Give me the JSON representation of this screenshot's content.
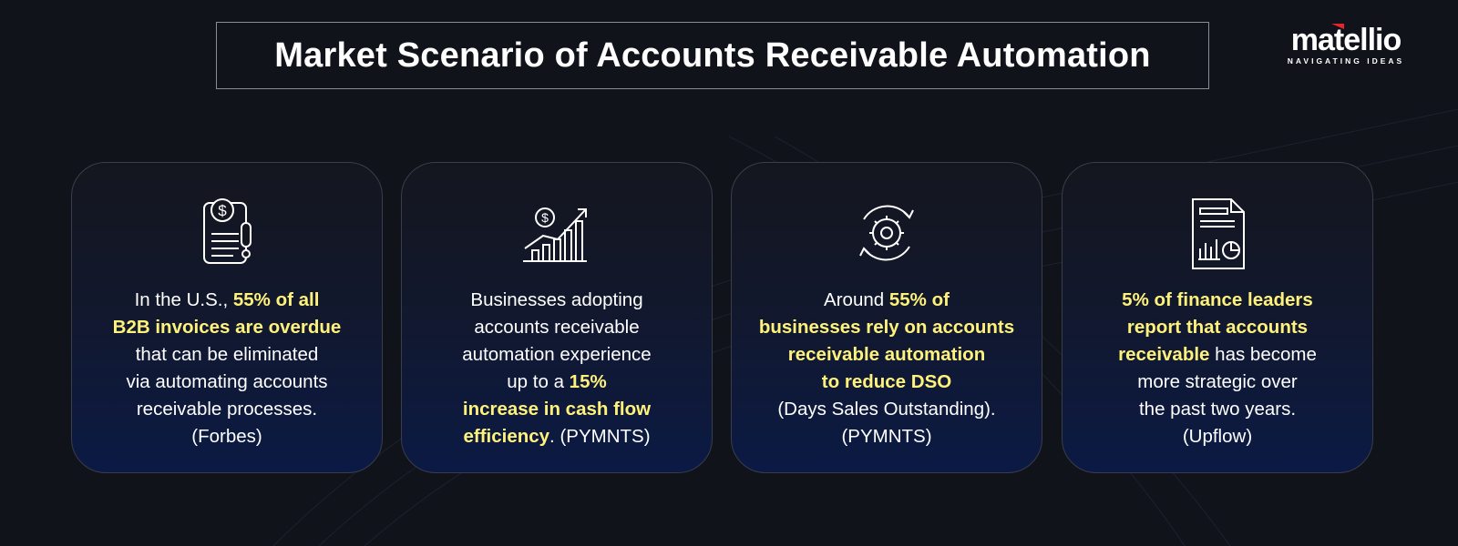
{
  "title": "Market Scenario of Accounts Receivable Automation",
  "logo": {
    "wordmark": "matellio",
    "tagline": "NAVIGATING IDEAS",
    "accent": "#e8242b"
  },
  "colors": {
    "highlight": "#fff27a",
    "background": "#11131b",
    "card_bottom": "#0b1a45"
  },
  "cards": [
    {
      "icon": "invoice-alert-icon",
      "lines": [
        [
          {
            "t": "In the U.S., ",
            "hl": false
          },
          {
            "t": "55% of all",
            "hl": true
          }
        ],
        [
          {
            "t": "B2B invoices are overdue",
            "hl": true
          }
        ],
        [
          {
            "t": "that can be eliminated",
            "hl": false
          }
        ],
        [
          {
            "t": "via automating accounts",
            "hl": false
          }
        ],
        [
          {
            "t": "receivable processes.",
            "hl": false
          }
        ],
        [
          {
            "t": "(Forbes)",
            "hl": false
          }
        ]
      ]
    },
    {
      "icon": "growth-chart-icon",
      "lines": [
        [
          {
            "t": "Businesses adopting",
            "hl": false
          }
        ],
        [
          {
            "t": "accounts receivable",
            "hl": false
          }
        ],
        [
          {
            "t": "automation experience",
            "hl": false
          }
        ],
        [
          {
            "t": "up to a ",
            "hl": false
          },
          {
            "t": "15%",
            "hl": true
          }
        ],
        [
          {
            "t": "increase in cash flow",
            "hl": true
          }
        ],
        [
          {
            "t": "efficiency",
            "hl": true
          },
          {
            "t": ". (PYMNTS)",
            "hl": false
          }
        ]
      ]
    },
    {
      "icon": "gear-cycle-icon",
      "lines": [
        [
          {
            "t": "Around ",
            "hl": false
          },
          {
            "t": "55% of",
            "hl": true
          }
        ],
        [
          {
            "t": "businesses rely on accounts",
            "hl": true
          }
        ],
        [
          {
            "t": "receivable automation",
            "hl": true
          }
        ],
        [
          {
            "t": "to reduce DSO",
            "hl": true
          }
        ],
        [
          {
            "t": "(Days Sales Outstanding).",
            "hl": false
          }
        ],
        [
          {
            "t": "(PYMNTS)",
            "hl": false
          }
        ]
      ]
    },
    {
      "icon": "report-document-icon",
      "lines": [
        [
          {
            "t": "5% of finance leaders",
            "hl": true
          }
        ],
        [
          {
            "t": "report that accounts",
            "hl": true
          }
        ],
        [
          {
            "t": "receivable",
            "hl": true
          },
          {
            "t": " has become",
            "hl": false
          }
        ],
        [
          {
            "t": "more strategic over",
            "hl": false
          }
        ],
        [
          {
            "t": "the past two years.",
            "hl": false
          }
        ],
        [
          {
            "t": "(Upflow)",
            "hl": false
          }
        ]
      ]
    }
  ]
}
